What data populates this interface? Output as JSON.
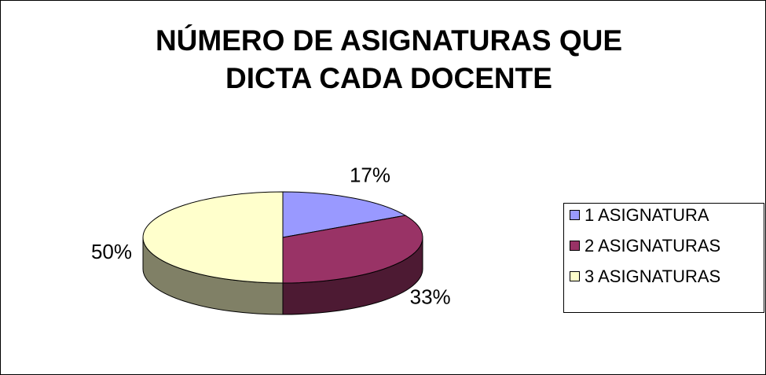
{
  "chart_data": {
    "type": "pie",
    "title": "NÚMERO DE ASIGNATURAS QUE DICTA CADA DOCENTE",
    "categories": [
      "1 ASIGNATURA",
      "2 ASIGNATURAS",
      "3 ASIGNATURAS"
    ],
    "values": [
      17,
      33,
      50
    ],
    "value_labels": [
      "17%",
      "33%",
      "50%"
    ],
    "colors": [
      "#9999ff",
      "#993366",
      "#ffffcc"
    ],
    "legend": "right"
  }
}
